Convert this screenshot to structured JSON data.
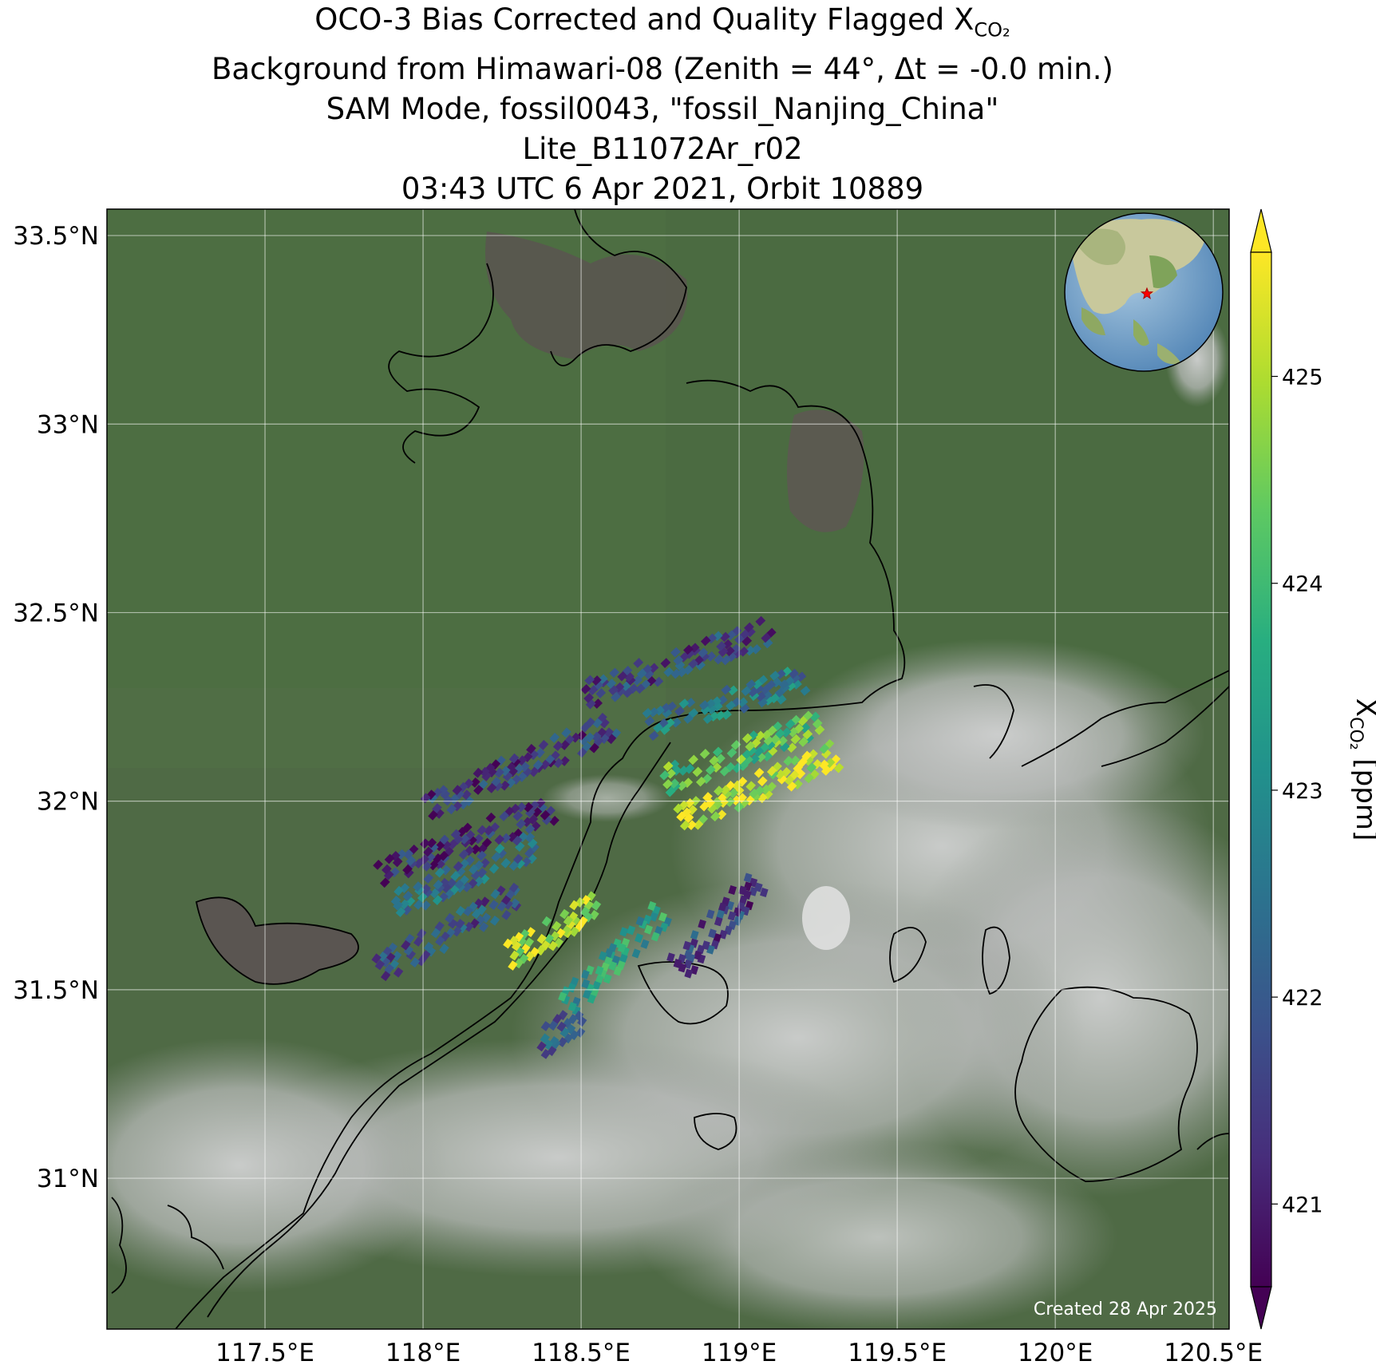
{
  "title": {
    "line1": "OCO-3 Bias Corrected and Quality Flagged X",
    "line1_sub": "CO₂",
    "line2": "Background from Himawari-08 (Zenith = 44°, Δt = -0.0 min.)",
    "line3": "SAM Mode, fossil0043, \"fossil_Nanjing_China\"",
    "line4": "Lite_B11072Ar_r02",
    "line5": "03:43 UTC 6 Apr 2021, Orbit 10889"
  },
  "map": {
    "lon_range": [
      117.0,
      120.55
    ],
    "lat_range": [
      30.6,
      33.57
    ],
    "lon_ticks": [
      117.5,
      118.0,
      118.5,
      119.0,
      119.5,
      120.0,
      120.5
    ],
    "lon_tick_labels": [
      "117.5°E",
      "118°E",
      "118.5°E",
      "119°E",
      "119.5°E",
      "120°E",
      "120.5°E"
    ],
    "lat_ticks": [
      31.0,
      31.5,
      32.0,
      32.5,
      33.0,
      33.5
    ],
    "lat_tick_labels": [
      "31°N",
      "31.5°N",
      "32°N",
      "32.5°N",
      "33°N",
      "33.5°N"
    ],
    "gridlines": true,
    "background": "Himawari-08 true color satellite imagery with clouds to the southeast",
    "target_marker": {
      "lon": 118.8,
      "lat": 32.05,
      "color": "#ff0000",
      "shape": "star"
    },
    "credit": "Created 28 Apr 2025"
  },
  "colorbar": {
    "label_main": "X",
    "label_sub": "CO₂",
    "label_unit": " [ppm]",
    "vmin": 420.6,
    "vmax": 425.6,
    "ticks": [
      421,
      422,
      423,
      424,
      425
    ],
    "tick_labels": [
      "421",
      "422",
      "423",
      "424",
      "425"
    ],
    "colormap": "viridis",
    "extend": "both"
  },
  "chart_data": {
    "type": "scatter",
    "description_variable": "XCO2 soundings",
    "units": "ppm",
    "swaths": [
      {
        "lon0": 119.1,
        "lat0": 32.45,
        "lon1": 118.5,
        "lat1": 32.28,
        "mean": 421.6
      },
      {
        "lon0": 119.2,
        "lat0": 32.32,
        "lon1": 118.7,
        "lat1": 32.2,
        "mean": 422.6
      },
      {
        "lon0": 119.25,
        "lat0": 32.2,
        "lon1": 118.75,
        "lat1": 32.05,
        "mean": 424.2
      },
      {
        "lon0": 119.3,
        "lat0": 32.12,
        "lon1": 118.8,
        "lat1": 31.95,
        "mean": 425.2
      },
      {
        "lon0": 118.6,
        "lat0": 32.2,
        "lon1": 118.0,
        "lat1": 31.98,
        "mean": 421.4
      },
      {
        "lon0": 118.4,
        "lat0": 31.98,
        "lon1": 117.85,
        "lat1": 31.8,
        "mean": 421.2
      },
      {
        "lon0": 118.35,
        "lat0": 31.88,
        "lon1": 117.9,
        "lat1": 31.72,
        "mean": 422.3
      },
      {
        "lon0": 118.3,
        "lat0": 31.75,
        "lon1": 117.85,
        "lat1": 31.55,
        "mean": 421.8
      },
      {
        "lon0": 118.55,
        "lat0": 31.72,
        "lon1": 118.25,
        "lat1": 31.58,
        "mean": 425.0
      },
      {
        "lon0": 118.75,
        "lat0": 31.7,
        "lon1": 118.45,
        "lat1": 31.45,
        "mean": 423.4
      },
      {
        "lon0": 119.05,
        "lat0": 31.78,
        "lon1": 118.8,
        "lat1": 31.55,
        "mean": 421.5
      },
      {
        "lon0": 118.5,
        "lat0": 31.42,
        "lon1": 118.35,
        "lat1": 31.35,
        "mean": 422.0
      }
    ]
  }
}
